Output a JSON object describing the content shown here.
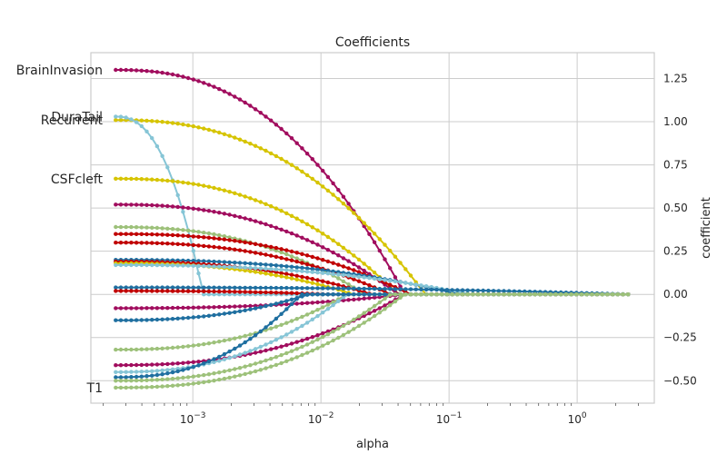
{
  "chart_data": {
    "type": "line",
    "title": "Coefficients",
    "xlabel": "alpha",
    "ylabel": "coefficient",
    "x_scale": "log",
    "xlim": [
      0.00016,
      4.0
    ],
    "ylim": [
      -0.63,
      1.4
    ],
    "y_axis_position": "right",
    "grid": true,
    "x_ticks": [
      {
        "value": 0.001,
        "base": "10",
        "exp": "−3"
      },
      {
        "value": 0.01,
        "base": "10",
        "exp": "−2"
      },
      {
        "value": 0.1,
        "base": "10",
        "exp": "−1"
      },
      {
        "value": 1,
        "base": "10",
        "exp": "0"
      }
    ],
    "y_ticks": [
      {
        "value": 1.25,
        "label": "1.25"
      },
      {
        "value": 1.0,
        "label": "1.00"
      },
      {
        "value": 0.75,
        "label": "0.75"
      },
      {
        "value": 0.5,
        "label": "0.50"
      },
      {
        "value": 0.25,
        "label": "0.25"
      },
      {
        "value": 0.0,
        "label": "0.00"
      },
      {
        "value": -0.25,
        "label": "−0.25"
      },
      {
        "value": -0.5,
        "label": "−0.50"
      }
    ],
    "annotations": [
      {
        "text": "BrainInvasion",
        "y": 1.3
      },
      {
        "text": "DuraTail",
        "y": 1.03
      },
      {
        "text": "Recurrent",
        "y": 1.01
      },
      {
        "text": "CSFcleft",
        "y": 0.67
      },
      {
        "text": "T1",
        "y": -0.54
      }
    ],
    "alpha_range": [
      0.00025,
      2.5
    ],
    "series": [
      {
        "color": "#a10d5e",
        "start": 1.3,
        "zero_at": 0.045
      },
      {
        "color": "#d6c400",
        "start": 1.01,
        "zero_at": 0.065
      },
      {
        "color": "#86c5d6",
        "start": 1.03,
        "zero_at": 0.0012
      },
      {
        "color": "#d6c400",
        "start": 0.67,
        "zero_at": 0.04
      },
      {
        "color": "#a10d5e",
        "start": 0.52,
        "zero_at": 0.04
      },
      {
        "color": "#9dc17a",
        "start": 0.39,
        "zero_at": 0.022
      },
      {
        "color": "#c00000",
        "start": 0.35,
        "zero_at": 0.05
      },
      {
        "color": "#c00000",
        "start": 0.3,
        "zero_at": 0.035
      },
      {
        "color": "#1f6fa0",
        "start": 0.2,
        "zero_at": 0.12
      },
      {
        "color": "#c00000",
        "start": 0.19,
        "zero_at": 0.025
      },
      {
        "color": "#d6c400",
        "start": 0.18,
        "zero_at": 0.018
      },
      {
        "color": "#86c5d6",
        "start": 0.17,
        "zero_at": 0.15
      },
      {
        "color": "#1f6fa0",
        "start": 0.04,
        "zero_at": 2.5
      },
      {
        "color": "#c00000",
        "start": 0.02,
        "zero_at": 0.012
      },
      {
        "color": "#a10d5e",
        "start": -0.08,
        "zero_at": 0.045
      },
      {
        "color": "#1f6fa0",
        "start": -0.15,
        "zero_at": 0.008
      },
      {
        "color": "#9dc17a",
        "start": -0.32,
        "zero_at": 0.016
      },
      {
        "color": "#a10d5e",
        "start": -0.41,
        "zero_at": 0.045
      },
      {
        "color": "#86c5d6",
        "start": -0.45,
        "zero_at": 0.016
      },
      {
        "color": "#1f6fa0",
        "start": -0.48,
        "zero_at": 0.007
      },
      {
        "color": "#9dc17a",
        "start": -0.5,
        "zero_at": 0.035
      },
      {
        "color": "#9dc17a",
        "start": -0.54,
        "zero_at": 0.045
      }
    ]
  }
}
